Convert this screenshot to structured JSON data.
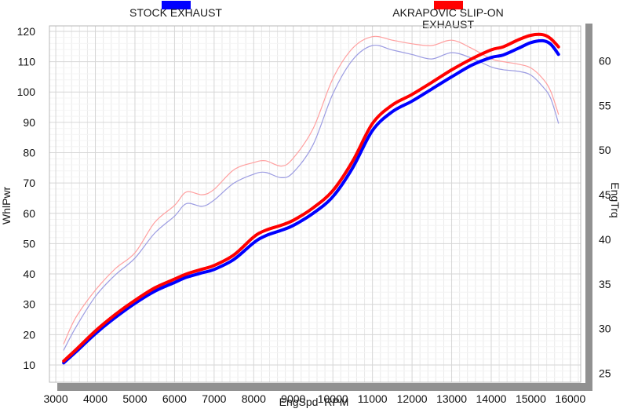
{
  "legend": {
    "items": [
      {
        "label": "STOCK EXHAUST",
        "color": "#0000ff"
      },
      {
        "label": "AKRAPOVIC SLIP-ON EXHAUST",
        "color": "#ff0000"
      }
    ]
  },
  "chart_data": {
    "type": "line",
    "title": "",
    "x": [
      3200,
      3500,
      4000,
      4500,
      5000,
      5500,
      6000,
      6300,
      6700,
      7000,
      7500,
      8000,
      8300,
      8700,
      9000,
      9500,
      10000,
      10500,
      11000,
      11500,
      12000,
      12500,
      13000,
      13500,
      14000,
      14300,
      14700,
      15000,
      15300,
      15500,
      15700
    ],
    "series": [
      {
        "name": "STOCK EXHAUST power",
        "axis": "power",
        "color": "#0000ff",
        "width": 4,
        "values": [
          10.7,
          14.2,
          20.3,
          25.6,
          30.3,
          34.3,
          37.2,
          38.9,
          40.4,
          41.5,
          44.8,
          50.3,
          52.6,
          54.4,
          56.0,
          60.0,
          65.5,
          75.0,
          87.3,
          93.5,
          97.0,
          101.0,
          105.0,
          108.8,
          111.4,
          112.2,
          114.5,
          116.3,
          116.9,
          115.8,
          112.4
        ]
      },
      {
        "name": "AKRAPOVIC SLIP-ON EXHAUST power",
        "axis": "power",
        "color": "#ff0000",
        "width": 4,
        "values": [
          11.3,
          14.9,
          21.2,
          26.6,
          31.3,
          35.4,
          38.3,
          40.0,
          41.6,
          42.8,
          46.3,
          52.2,
          54.4,
          56.1,
          57.7,
          61.8,
          67.5,
          77.2,
          89.6,
          95.7,
          99.2,
          103.2,
          107.3,
          110.9,
          113.9,
          114.9,
          117.3,
          118.7,
          118.9,
          117.6,
          114.9
        ]
      },
      {
        "name": "STOCK EXHAUST torque",
        "axis": "torque",
        "color": "#9c9ce2",
        "width": 1.2,
        "values": [
          27.6,
          30.1,
          33.6,
          36.0,
          37.9,
          40.7,
          42.6,
          44.0,
          43.7,
          44.4,
          46.3,
          47.3,
          47.5,
          46.9,
          47.5,
          50.6,
          56.3,
          60.1,
          61.7,
          61.2,
          60.7,
          60.2,
          60.9,
          60.3,
          59.3,
          59.0,
          58.8,
          58.4,
          57.1,
          55.8,
          53.0
        ]
      },
      {
        "name": "AKRAPOVIC SLIP-ON EXHAUST torque",
        "axis": "torque",
        "color": "#ff9f9f",
        "width": 1.2,
        "values": [
          28.3,
          31.2,
          34.3,
          36.7,
          38.5,
          41.9,
          43.8,
          45.3,
          45.0,
          45.6,
          47.8,
          48.6,
          48.8,
          48.2,
          49.1,
          52.4,
          58.0,
          61.4,
          62.7,
          62.3,
          61.9,
          61.7,
          62.3,
          61.4,
          60.2,
          59.9,
          59.6,
          59.2,
          58.0,
          56.6,
          54.0
        ]
      }
    ],
    "axes": {
      "x": {
        "label": "EngSpd  RPM",
        "lim": [
          2840,
          16260
        ],
        "ticks": [
          3000,
          4000,
          5000,
          6000,
          7000,
          8000,
          9000,
          10000,
          11000,
          12000,
          13000,
          14000,
          15000,
          16000
        ],
        "minor_step": 200
      },
      "power": {
        "label": "WhlPwr",
        "lim": [
          4.3,
          121.8
        ],
        "ticks": [
          10,
          20,
          30,
          40,
          50,
          60,
          70,
          80,
          90,
          100,
          110,
          120
        ],
        "minor_step": 2
      },
      "torque": {
        "label": "EngTrq",
        "lim": [
          24.0,
          63.9
        ],
        "ticks": [
          25,
          30,
          35,
          40,
          45,
          50,
          55,
          60
        ]
      }
    },
    "grid": {
      "major_color": "#d6d6d6",
      "minor_v_color": "#e9e9e9",
      "minor_h_color": "#f4f4f4",
      "border_color": "#b8b8b8"
    },
    "legend_position": "top"
  }
}
